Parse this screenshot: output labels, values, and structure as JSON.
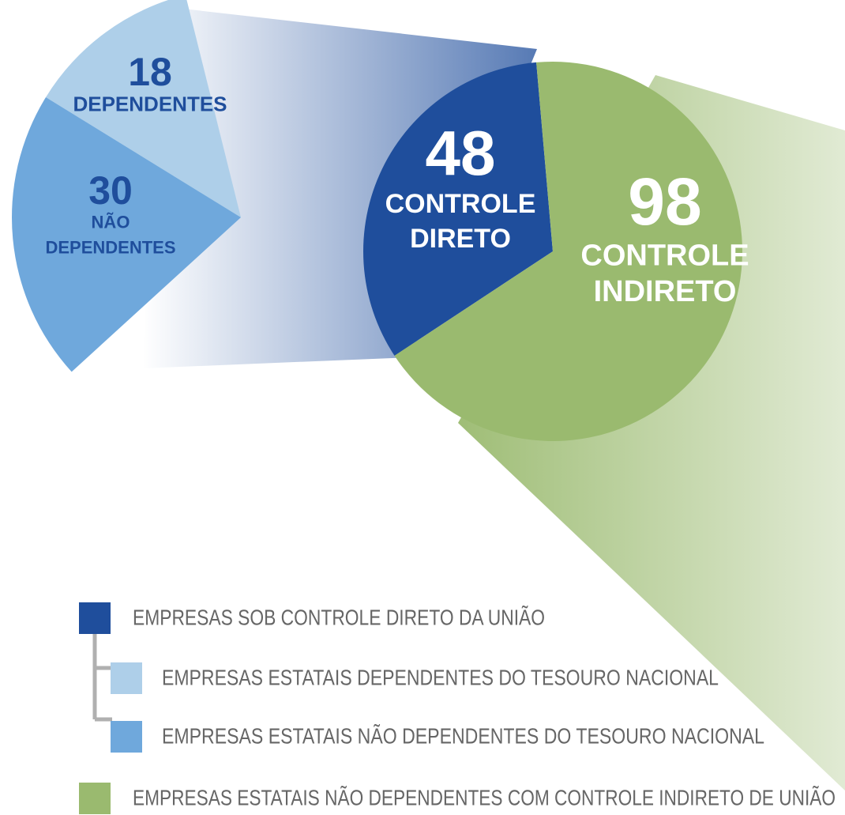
{
  "chart_data": {
    "type": "pie_of_pie",
    "pie": {
      "labels": [
        [
          "CONTROLE",
          "DIRETO"
        ],
        [
          "CONTROLE",
          "INDIRETO"
        ]
      ],
      "values": [
        48,
        98
      ],
      "colors": [
        "#1f4e9c",
        "#9aba6f"
      ]
    },
    "sub_pie": {
      "labels": [
        [
          "DEPENDENTES"
        ],
        [
          "NÃO",
          "DEPENDENTES"
        ]
      ],
      "values": [
        18,
        30
      ],
      "colors": [
        "#aecfe9",
        "#6fa8dc"
      ]
    },
    "legend": [
      "EMPRESAS SOB CONTROLE DIRETO DA UNIÃO",
      "EMPRESAS ESTATAIS DEPENDENTES DO TESOURO NACIONAL",
      "EMPRESAS ESTATAIS NÃO DEPENDENTES DO TESOURO NACIONAL",
      "EMPRESAS ESTATAIS NÃO DEPENDENTES COM CONTROLE INDIRETO DE UNIÃO"
    ]
  }
}
